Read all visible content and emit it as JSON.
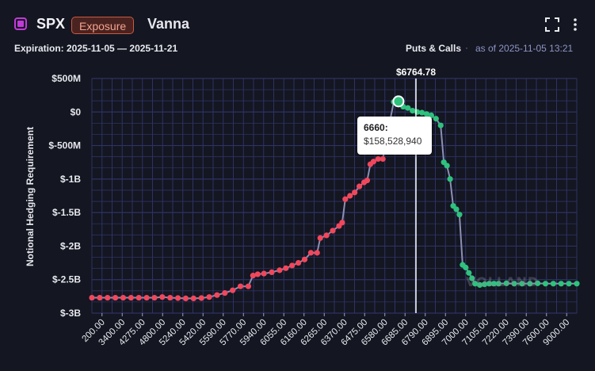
{
  "header": {
    "ticker": "SPX",
    "badge": "Exposure",
    "metric": "Vanna",
    "expiration": "Expiration: 2025-11-05 — 2025-11-21",
    "mode": "Puts & Calls",
    "separator": "·",
    "as_of": "as of 2025-11-05 13:21",
    "icons": [
      "ticker-color-icon",
      "expand-icon",
      "more-vertical-icon"
    ]
  },
  "tooltip": {
    "strike": "6660:",
    "value": "$158,528,940"
  },
  "watermark": "VOLLAND",
  "colors": {
    "background": "#141621",
    "grid": "#2e3264",
    "negative": "#f0475c",
    "positive": "#2ec27e",
    "line": "#8b8fb5",
    "spot_line": "#ffffff"
  },
  "chart_data": {
    "type": "line",
    "ylabel": "Notional Hedging Requirement",
    "ylim": [
      -3000000000,
      500000000
    ],
    "y_ticks": [
      500000000,
      0,
      -500000000,
      -1000000000,
      -1500000000,
      -2000000000,
      -2500000000,
      -3000000000
    ],
    "y_tick_labels": [
      "$500M",
      "$0",
      "$-500M",
      "$-1B",
      "$-1.5B",
      "$-2B",
      "$-2.5B",
      "$-3B"
    ],
    "x_tick_labels": [
      "200.00",
      "3400.00",
      "4275.00",
      "4800.00",
      "5240.00",
      "5420.00",
      "5590.00",
      "5770.00",
      "5940.00",
      "6055.00",
      "6160.00",
      "6265.00",
      "6370.00",
      "6475.00",
      "6580.00",
      "6685.00",
      "6790.00",
      "6895.00",
      "7000.00",
      "7105.00",
      "7220.00",
      "7390.00",
      "7600.00",
      "9000.00"
    ],
    "spot": {
      "label": "$6764.78",
      "value": 6764.78
    },
    "highlight": {
      "strike": 6660,
      "value": 158528940
    },
    "series": [
      {
        "negative_color": "#f0475c",
        "positive_color": "#2ec27e",
        "points": [
          [
            0,
            -2770000000
          ],
          [
            0.5,
            -2770000000
          ],
          [
            1,
            -2770000000
          ],
          [
            1.5,
            -2770000000
          ],
          [
            2,
            -2770000000
          ],
          [
            2.5,
            -2770000000
          ],
          [
            3,
            -2770000000
          ],
          [
            3.5,
            -2770000000
          ],
          [
            4,
            -2770000000
          ],
          [
            4.5,
            -2760000000
          ],
          [
            5,
            -2770000000
          ],
          [
            5.5,
            -2775000000
          ],
          [
            6,
            -2780000000
          ],
          [
            6.5,
            -2780000000
          ],
          [
            7,
            -2775000000
          ],
          [
            7.5,
            -2760000000
          ],
          [
            8,
            -2730000000
          ],
          [
            8.5,
            -2700000000
          ],
          [
            9,
            -2660000000
          ],
          [
            9.5,
            -2600000000
          ],
          [
            10,
            -2600000000
          ],
          [
            10.3,
            -2440000000
          ],
          [
            10.6,
            -2420000000
          ],
          [
            11,
            -2410000000
          ],
          [
            11.5,
            -2390000000
          ],
          [
            12,
            -2360000000
          ],
          [
            12.4,
            -2330000000
          ],
          [
            12.8,
            -2290000000
          ],
          [
            13.2,
            -2250000000
          ],
          [
            13.6,
            -2200000000
          ],
          [
            14,
            -2100000000
          ],
          [
            14.4,
            -2100000000
          ],
          [
            14.6,
            -1880000000
          ],
          [
            15,
            -1840000000
          ],
          [
            15.4,
            -1770000000
          ],
          [
            15.8,
            -1700000000
          ],
          [
            16,
            -1650000000
          ],
          [
            16.2,
            -1300000000
          ],
          [
            16.5,
            -1250000000
          ],
          [
            16.8,
            -1200000000
          ],
          [
            17.1,
            -1110000000
          ],
          [
            17.4,
            -1050000000
          ],
          [
            17.6,
            -1020000000
          ],
          [
            17.8,
            -780000000
          ],
          [
            18,
            -740000000
          ],
          [
            18.3,
            -700000000
          ],
          [
            18.6,
            -700000000
          ],
          [
            18.8,
            -420000000
          ],
          [
            19,
            -200000000
          ],
          [
            19.3,
            150000000
          ],
          [
            19.6,
            158528940
          ],
          [
            19.9,
            80000000
          ],
          [
            20.2,
            60000000
          ],
          [
            20.5,
            20000000
          ],
          [
            20.8,
            0
          ],
          [
            21.1,
            -10000000
          ],
          [
            21.4,
            -30000000
          ],
          [
            21.7,
            -50000000
          ],
          [
            22,
            -100000000
          ],
          [
            22.3,
            -200000000
          ],
          [
            22.5,
            -750000000
          ],
          [
            22.7,
            -800000000
          ],
          [
            22.9,
            -1000000000
          ],
          [
            23.1,
            -1400000000
          ],
          [
            23.3,
            -1450000000
          ],
          [
            23.5,
            -1530000000
          ],
          [
            23.7,
            -2280000000
          ],
          [
            23.9,
            -2320000000
          ],
          [
            24.1,
            -2400000000
          ],
          [
            24.3,
            -2480000000
          ],
          [
            24.5,
            -2560000000
          ],
          [
            24.8,
            -2580000000
          ],
          [
            25.1,
            -2570000000
          ],
          [
            25.4,
            -2560000000
          ],
          [
            25.7,
            -2560000000
          ],
          [
            26,
            -2560000000
          ],
          [
            26.5,
            -2555000000
          ],
          [
            27,
            -2560000000
          ],
          [
            27.5,
            -2560000000
          ],
          [
            28,
            -2560000000
          ],
          [
            28.5,
            -2555000000
          ],
          [
            29,
            -2560000000
          ],
          [
            29.5,
            -2560000000
          ],
          [
            30,
            -2560000000
          ],
          [
            30.5,
            -2560000000
          ],
          [
            31,
            -2560000000
          ]
        ]
      }
    ]
  }
}
